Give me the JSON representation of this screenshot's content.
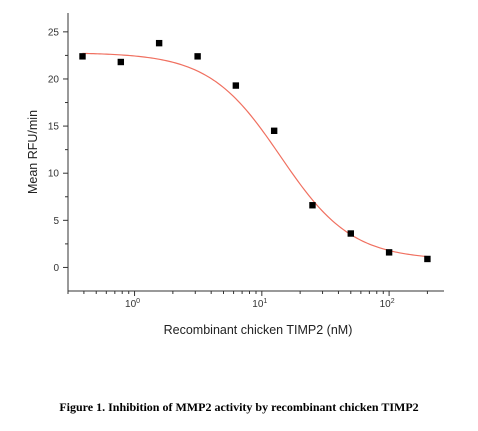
{
  "caption": "Figure 1. Inhibition of MMP2 activity by recombinant chicken TIMP2",
  "chart_data": {
    "type": "scatter",
    "title": "",
    "xlabel": "Recombinant chicken TIMP2 (nM)",
    "ylabel": "Mean RFU/min",
    "xscale": "log",
    "xlim": [
      0.3,
      270
    ],
    "ylim": [
      -2.5,
      27
    ],
    "x_tick_values": [
      1,
      10,
      100
    ],
    "x_tick_labels": [
      {
        "base": "10",
        "exp": "0"
      },
      {
        "base": "10",
        "exp": "1"
      },
      {
        "base": "10",
        "exp": "2"
      }
    ],
    "y_ticks": [
      0,
      5,
      10,
      15,
      20,
      25
    ],
    "grid": false,
    "series": [
      {
        "marker_color": "#000000",
        "points": [
          {
            "x": 0.39,
            "y": 22.4
          },
          {
            "x": 0.78,
            "y": 21.8
          },
          {
            "x": 1.56,
            "y": 23.8
          },
          {
            "x": 3.13,
            "y": 22.4
          },
          {
            "x": 6.25,
            "y": 19.3
          },
          {
            "x": 12.5,
            "y": 14.5
          },
          {
            "x": 25,
            "y": 6.6
          },
          {
            "x": 50,
            "y": 3.6
          },
          {
            "x": 100,
            "y": 1.6
          },
          {
            "x": 200,
            "y": 0.9
          }
        ]
      }
    ],
    "fit_curve": {
      "color": "#f07060",
      "model": "four-parameter logistic",
      "top": 22.8,
      "bottom": 0.8,
      "ec50": 14,
      "hill": 1.55
    }
  }
}
